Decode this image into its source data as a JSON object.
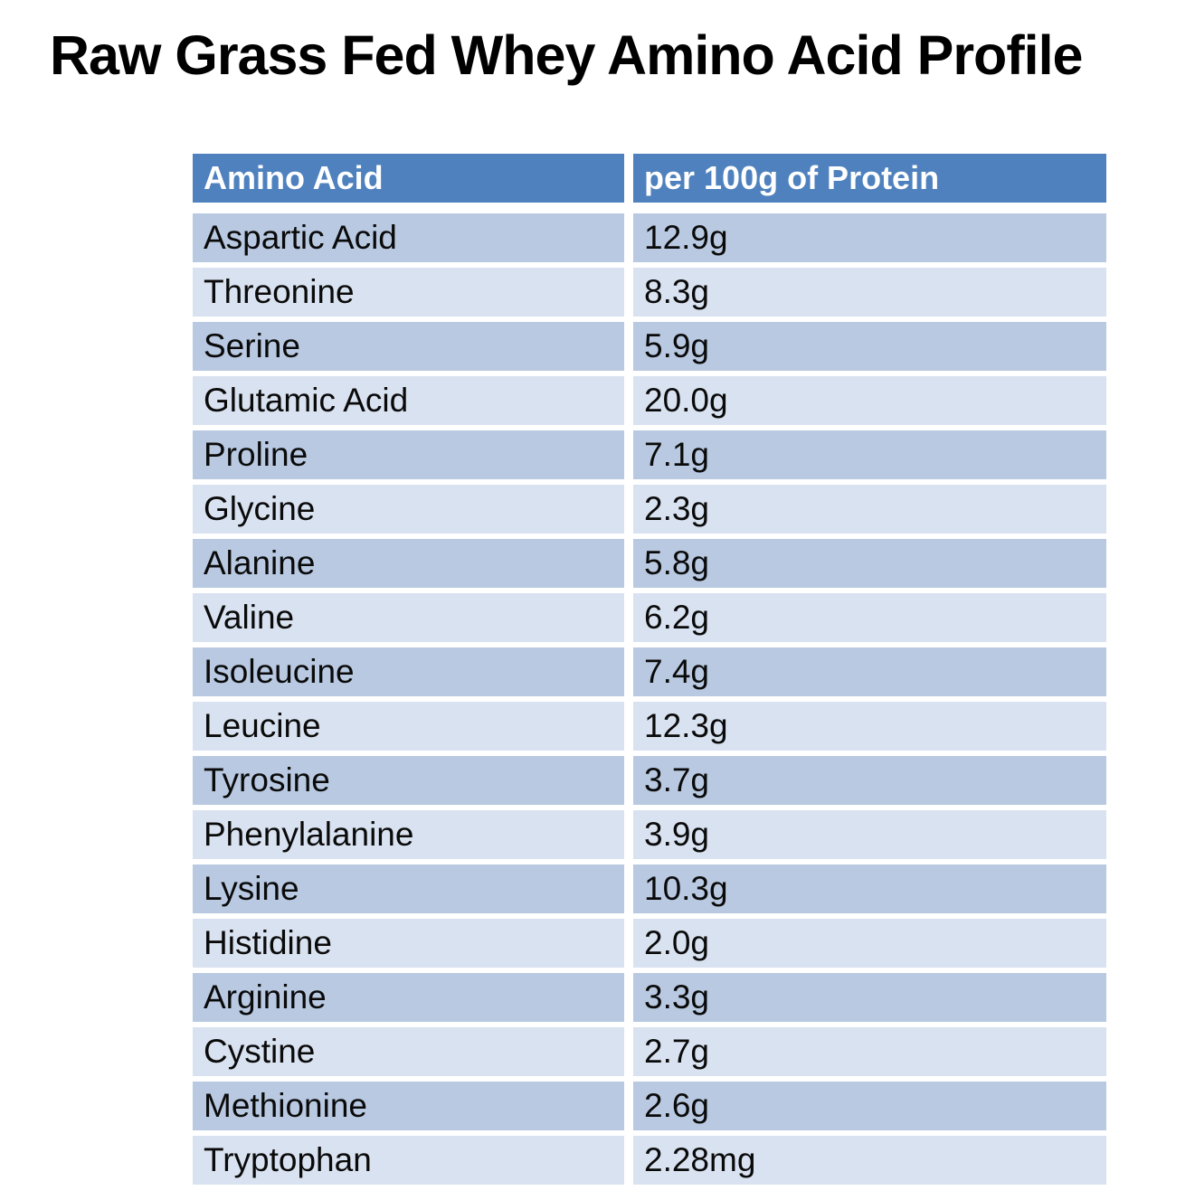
{
  "page": {
    "title": "Raw Grass Fed Whey Amino Acid Profile"
  },
  "colors": {
    "header_bg": "#4E81BD",
    "row_dark_bg": "#B8C9E1",
    "row_light_bg": "#D9E2F0",
    "header_text": "#FFFFFF",
    "cell_text": "#0A0A0A",
    "title_text": "#000000"
  },
  "chart_data": {
    "type": "table",
    "title": "Raw Grass Fed Whey Amino Acid Profile",
    "columns": [
      "Amino Acid",
      "per 100g of Protein"
    ],
    "rows": [
      [
        "Aspartic Acid",
        "12.9g"
      ],
      [
        "Threonine",
        "8.3g"
      ],
      [
        "Serine",
        "5.9g"
      ],
      [
        "Glutamic Acid",
        "20.0g"
      ],
      [
        "Proline",
        "7.1g"
      ],
      [
        "Glycine",
        "2.3g"
      ],
      [
        "Alanine",
        "5.8g"
      ],
      [
        "Valine",
        "6.2g"
      ],
      [
        "Isoleucine",
        "7.4g"
      ],
      [
        "Leucine",
        "12.3g"
      ],
      [
        "Tyrosine",
        "3.7g"
      ],
      [
        "Phenylalanine",
        "3.9g"
      ],
      [
        "Lysine",
        "10.3g"
      ],
      [
        "Histidine",
        "2.0g"
      ],
      [
        "Arginine",
        "3.3g"
      ],
      [
        "Cystine",
        "2.7g"
      ],
      [
        "Methionine",
        "2.6g"
      ],
      [
        "Tryptophan",
        "2.28mg"
      ]
    ],
    "layout": {
      "banding": "odd-rows-dark",
      "gridlines": "white-gutters",
      "legend": "none"
    }
  }
}
